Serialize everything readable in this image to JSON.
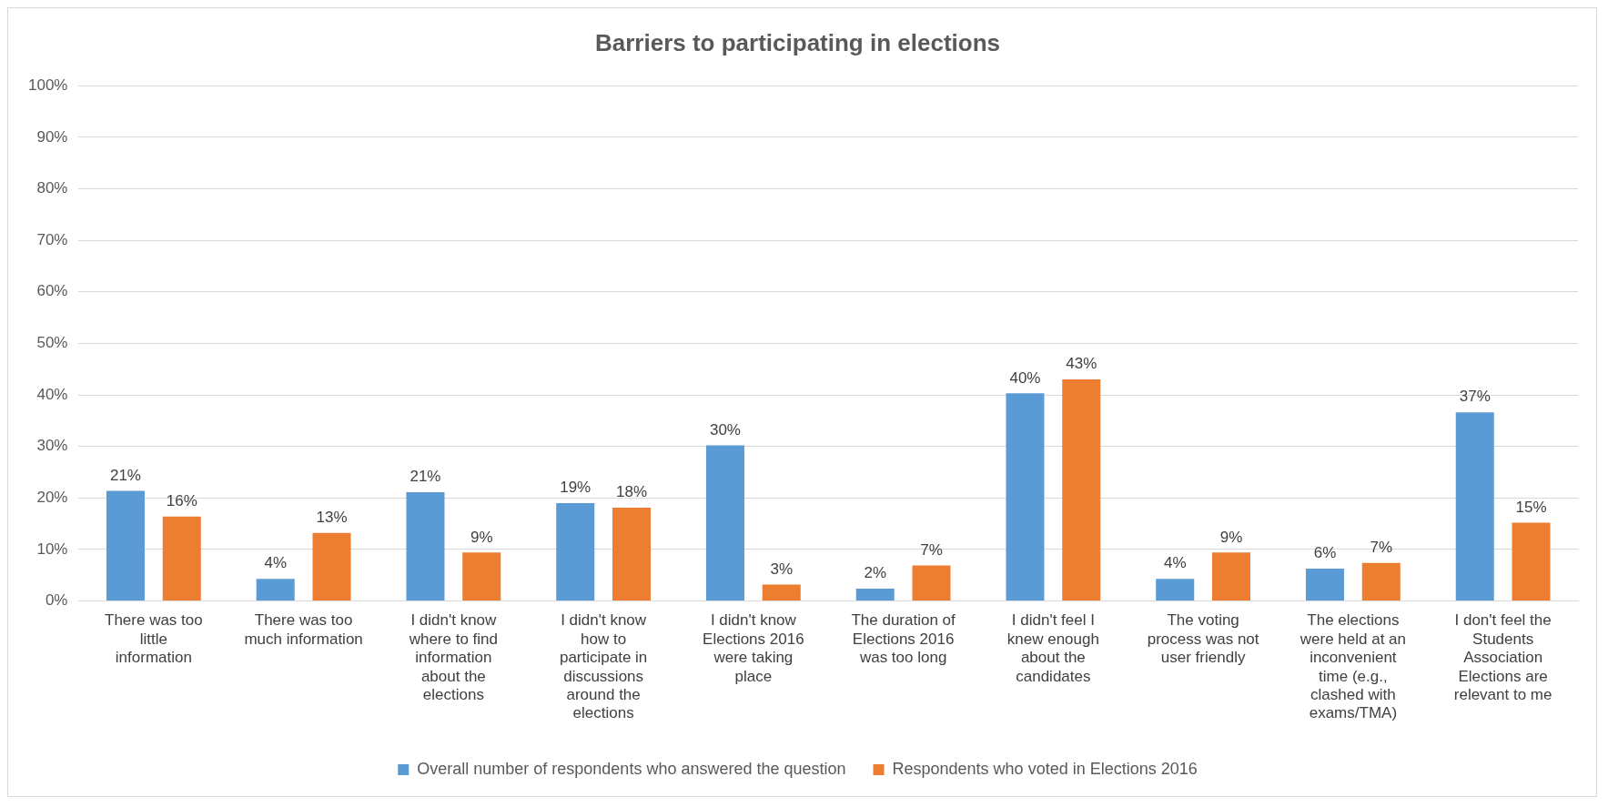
{
  "chart_data": {
    "type": "bar",
    "title": "Barriers to participating in elections",
    "categories": [
      "There was too little information",
      "There was too much information",
      "I didn't know where to find information about the elections",
      "I didn't know how to participate in discussions around the elections",
      "I didn't know Elections 2016 were taking place",
      "The duration of Elections 2016 was too long",
      "I didn't feel I knew enough about the candidates",
      "The voting process was not user friendly",
      "The elections were held at an inconvenient time (e.g., clashed with exams/TMA)",
      "I don't feel the Students Association Elections are relevant to me"
    ],
    "series": [
      {
        "name": "Overall number of respondents who answered the question",
        "color": "#5b9bd5",
        "values": [
          21.4,
          4.3,
          21.1,
          19,
          30.2,
          2.4,
          40.3,
          4.3,
          6.3,
          36.6
        ],
        "value_labels": [
          "21%",
          "4%",
          "21%",
          "19%",
          "30%",
          "2%",
          "40%",
          "4%",
          "6%",
          "37%"
        ]
      },
      {
        "name": "Respondents who voted in Elections 2016",
        "color": "#ed7d31",
        "values": [
          16.4,
          13.2,
          9.4,
          18.1,
          3.2,
          6.9,
          43,
          9.4,
          7.4,
          15.2
        ],
        "value_labels": [
          "16%",
          "13%",
          "9%",
          "18%",
          "3%",
          "7%",
          "43%",
          "9%",
          "7%",
          "15%"
        ]
      }
    ],
    "ylim": [
      0,
      100
    ],
    "yticks": [
      {
        "value": 0,
        "label": "0%"
      },
      {
        "value": 10,
        "label": "10%"
      },
      {
        "value": 20,
        "label": "20%"
      },
      {
        "value": 30,
        "label": "30%"
      },
      {
        "value": 40,
        "label": "40%"
      },
      {
        "value": 50,
        "label": "50%"
      },
      {
        "value": 60,
        "label": "60%"
      },
      {
        "value": 70,
        "label": "70%"
      },
      {
        "value": 80,
        "label": "80%"
      },
      {
        "value": 90,
        "label": "90%"
      },
      {
        "value": 100,
        "label": "100%"
      }
    ],
    "grid": "y",
    "legend": "bottom"
  }
}
